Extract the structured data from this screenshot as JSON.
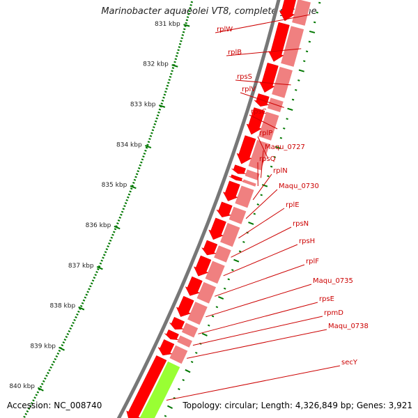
{
  "title": "Marinobacter aquaeolei VT8, complete genome",
  "accession_label": "Accession: NC_008740",
  "summary_label": "Topology: circular; Length: 4,326,849 bp; Genes: 3,921",
  "colors": {
    "backbone": "#777777",
    "gene": "#ff0000",
    "gene_light": "#f08080",
    "gene_alt": "#99ff33",
    "label": "#cc0000",
    "tick": "#007700"
  },
  "scale_labels": [
    "831 kbp",
    "832 kbp",
    "833 kbp",
    "834 kbp",
    "835 kbp",
    "836 kbp",
    "837 kbp",
    "838 kbp",
    "839 kbp",
    "840 kbp"
  ],
  "genes": [
    "rplW",
    "rplB",
    "rpsS",
    "rplV",
    "rpsC",
    "rplP",
    "Maqu_0727",
    "rpsQ",
    "rplN",
    "Maqu_0730",
    "rplE",
    "rpsN",
    "rpsH",
    "rplF",
    "Maqu_0735",
    "rpsE",
    "rpmD",
    "Maqu_0738",
    "secY"
  ]
}
